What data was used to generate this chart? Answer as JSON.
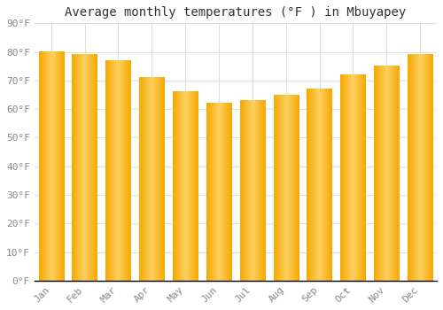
{
  "title": "Average monthly temperatures (°F ) in Mbuyapey",
  "months": [
    "Jan",
    "Feb",
    "Mar",
    "Apr",
    "May",
    "Jun",
    "Jul",
    "Aug",
    "Sep",
    "Oct",
    "Nov",
    "Dec"
  ],
  "values": [
    80,
    79,
    77,
    71,
    66,
    62,
    63,
    65,
    67,
    72,
    75,
    79
  ],
  "bar_color_left": "#F5A800",
  "bar_color_center": "#FDD060",
  "bar_color_right": "#F5A800",
  "ylim": [
    0,
    90
  ],
  "yticks": [
    0,
    10,
    20,
    30,
    40,
    50,
    60,
    70,
    80,
    90
  ],
  "ytick_labels": [
    "0°F",
    "10°F",
    "20°F",
    "30°F",
    "40°F",
    "50°F",
    "60°F",
    "70°F",
    "80°F",
    "90°F"
  ],
  "background_color": "#FFFFFF",
  "grid_color": "#DDDDDD",
  "title_fontsize": 10,
  "tick_fontsize": 8,
  "font_family": "monospace",
  "tick_color": "#888888",
  "bar_width": 0.75
}
